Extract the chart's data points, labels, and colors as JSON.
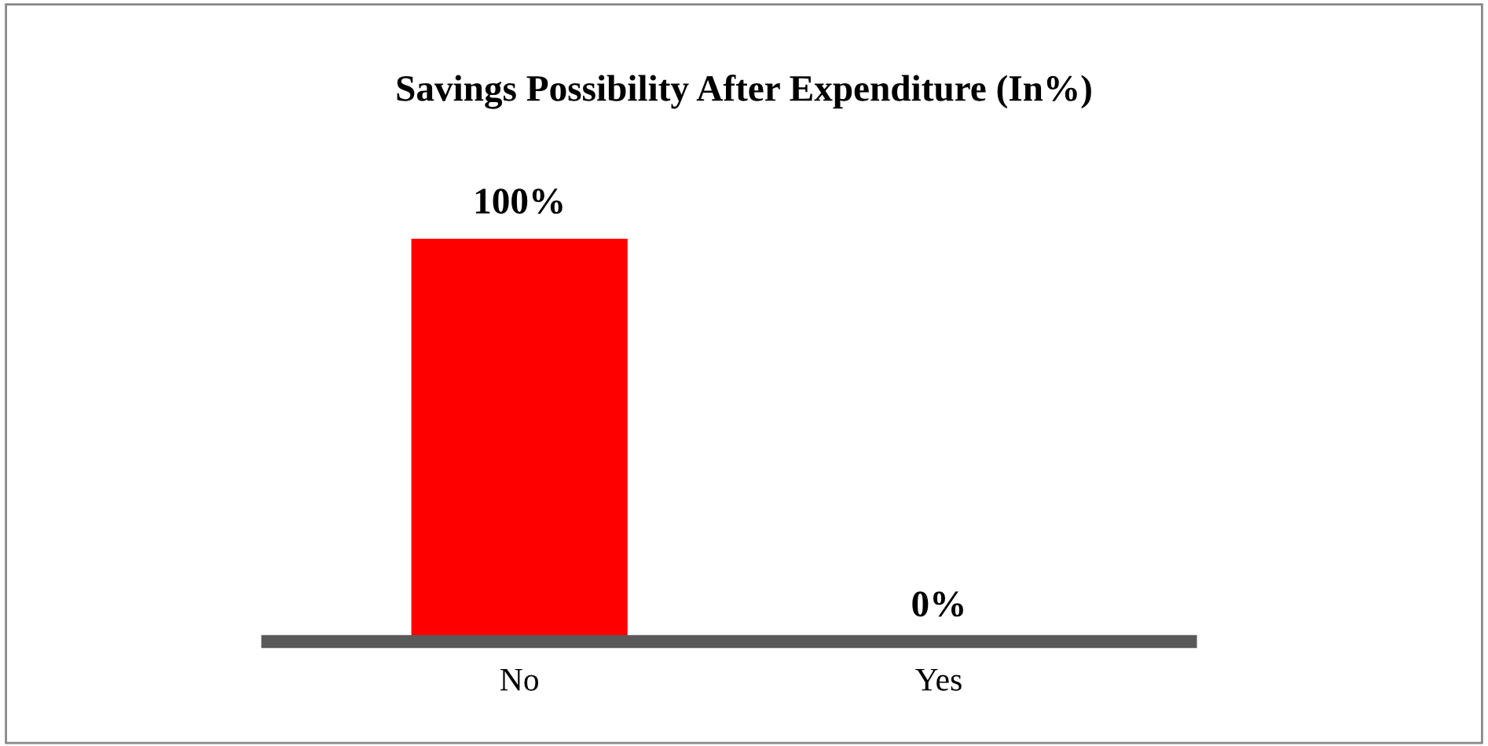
{
  "chart_data": {
    "type": "bar",
    "title": "Savings Possibility After Expenditure (In%)",
    "categories": [
      "No",
      "Yes"
    ],
    "values": [
      100,
      0
    ],
    "ylim": [
      0,
      100
    ],
    "colors": [
      "#ff0000",
      "#70ad47"
    ],
    "value_labels": [
      "100%",
      "0%"
    ],
    "tick_labels": "x",
    "grid": false,
    "legend": false
  }
}
